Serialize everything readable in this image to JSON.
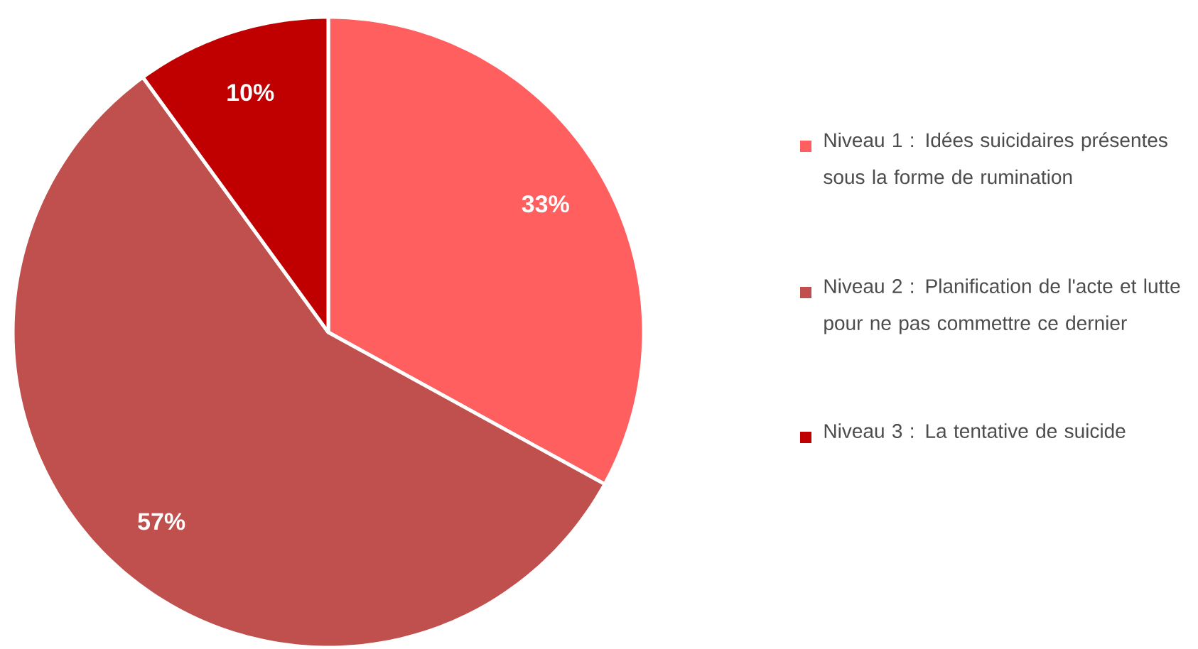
{
  "chart_data": {
    "type": "pie",
    "categories": [
      "Niveau 1 : Idées suicidaires présentes sous la forme de rumination",
      "Niveau 2 : Planification de l'acte et lutte pour ne pas commettre ce dernier",
      "Niveau 3 : La tentative de suicide"
    ],
    "values": [
      33,
      57,
      10
    ],
    "value_labels": [
      "33%",
      "57%",
      "10%"
    ],
    "colors": [
      "#ff5f5f",
      "#c0504d",
      "#c00000"
    ],
    "legend": "right"
  }
}
